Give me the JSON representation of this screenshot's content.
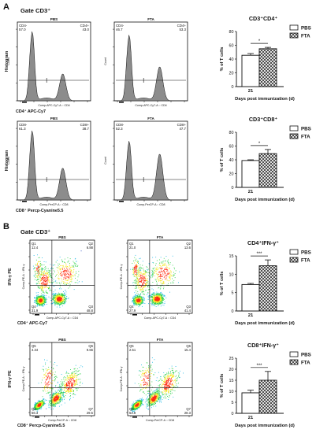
{
  "panels": {
    "A": {
      "letter": "A",
      "gate": "Gate CD3⁺",
      "rows": [
        {
          "kind": "histogram",
          "y_label": "Histogram",
          "x_label": "CD4⁺ APC-Cy7",
          "plots": [
            {
              "group": "PBS",
              "count_label": "Count",
              "axis_label": "Comp-APC-Cy7-A :: CD4",
              "gates": [
                {
                  "name": "CD4-",
                  "value": "57.0"
                },
                {
                  "name": "CD4+",
                  "value": "43.0"
                }
              ],
              "peaks": {
                "neg_height": 1.0,
                "pos_height": 0.38
              }
            },
            {
              "group": "FTA",
              "count_label": "Count",
              "axis_label": "Comp-APC-Cy7-A :: CD4",
              "gates": [
                {
                  "name": "CD4-",
                  "value": "46.7"
                },
                {
                  "name": "CD4+",
                  "value": "53.3"
                }
              ],
              "peaks": {
                "neg_height": 0.95,
                "pos_height": 0.48
              }
            }
          ],
          "chart": {
            "title": "CD3⁺CD4⁺",
            "type": "bar",
            "categories": [
              "21"
            ],
            "series": [
              {
                "name": "PBS",
                "values": [
                  45.5
                ],
                "err": [
                  2.5
                ]
              },
              {
                "name": "FTA",
                "values": [
                  55.0
                ],
                "err": [
                  2.0
                ]
              }
            ],
            "ylim": [
              0,
              80
            ],
            "yticks": [
              "0",
              "20",
              "40",
              "60",
              "80"
            ],
            "ylabel": "% of T cells",
            "xlabel": "Days post immunization (d)",
            "significance": "*",
            "legend": "right"
          }
        },
        {
          "kind": "histogram",
          "y_label": "Histogram",
          "x_label": "CD8⁺ Percp-Cyanine5.5",
          "plots": [
            {
              "group": "PBS",
              "count_label": "Count",
              "axis_label": "Comp-PerCP-A :: CD8",
              "gates": [
                {
                  "name": "CD8-",
                  "value": "61.3"
                },
                {
                  "name": "CD8+",
                  "value": "38.7"
                }
              ],
              "peaks": {
                "neg_height": 1.0,
                "pos_height": 0.45
              }
            },
            {
              "group": "FTA",
              "count_label": "Count",
              "axis_label": "Comp-PerCP-A :: CD8",
              "gates": [
                {
                  "name": "CD8-",
                  "value": "52.3"
                },
                {
                  "name": "CD8+",
                  "value": "47.7"
                }
              ],
              "peaks": {
                "neg_height": 0.85,
                "pos_height": 0.65
              }
            }
          ],
          "chart": {
            "title": "CD3⁺CD8⁺",
            "type": "bar",
            "categories": [
              "21"
            ],
            "series": [
              {
                "name": "PBS",
                "values": [
                  39.0
                ],
                "err": [
                  1.0
                ]
              },
              {
                "name": "FTA",
                "values": [
                  49.0
                ],
                "err": [
                  6.0
                ]
              }
            ],
            "ylim": [
              0,
              80
            ],
            "yticks": [
              "0",
              "20",
              "40",
              "60",
              "80"
            ],
            "ylabel": "% of T cells",
            "xlabel": "Days post immunization (d)",
            "significance": "*",
            "legend": "right"
          }
        }
      ]
    },
    "B": {
      "letter": "B",
      "gate": "Gate CD3⁺",
      "rows": [
        {
          "kind": "dotplot",
          "y_label": "IFN-γ PE",
          "x_label": "CD4⁺ APC-Cy7",
          "plots": [
            {
              "group": "PBS",
              "y_axis_label": "Comp-PE-A :: IFN-γ",
              "x_axis_label": "Comp-APC-Cy7-A :: CD4",
              "quadrants": [
                {
                  "name": "Q1",
                  "value": "12.4"
                },
                {
                  "name": "Q2",
                  "value": "6.88"
                },
                {
                  "name": "Q4",
                  "value": "31.9"
                },
                {
                  "name": "Q3",
                  "value": "48.8"
                }
              ]
            },
            {
              "group": "FTA",
              "y_axis_label": "Comp-PE-A :: IFN-γ",
              "x_axis_label": "Comp-APC-Cy7-A :: CD4",
              "quadrants": [
                {
                  "name": "Q1",
                  "value": "21.0"
                },
                {
                  "name": "Q2",
                  "value": "13.6"
                },
                {
                  "name": "Q4",
                  "value": "27.9"
                },
                {
                  "name": "Q3",
                  "value": "41.4"
                }
              ]
            }
          ],
          "chart": {
            "title": "CD4⁺IFN-γ⁺",
            "type": "bar",
            "categories": [
              "21"
            ],
            "series": [
              {
                "name": "PBS",
                "values": [
                  7.2
                ],
                "err": [
                  0.3
                ]
              },
              {
                "name": "FTA",
                "values": [
                  12.3
                ],
                "err": [
                  1.6
                ]
              }
            ],
            "ylim": [
              0,
              15
            ],
            "yticks": [
              "0",
              "5",
              "10",
              "15"
            ],
            "ylabel": "% of T cells",
            "xlabel": "Days post immunization (d)",
            "significance": "***",
            "legend": "right"
          }
        },
        {
          "kind": "dotplot",
          "y_label": "IFN-γ PE",
          "x_label": "CD8⁺ Percp-Cyanine5.5",
          "plots": [
            {
              "group": "PBS",
              "y_axis_label": "Comp-PE-A :: IFN-γ",
              "x_axis_label": "Comp-PerCP-A :: CD8",
              "quadrants": [
                {
                  "name": "Q5",
                  "value": "4.34"
                },
                {
                  "name": "Q6",
                  "value": "9.66"
                },
                {
                  "name": "Q8",
                  "value": "56.3"
                },
                {
                  "name": "Q7",
                  "value": "29.5"
                }
              ]
            },
            {
              "group": "FTA",
              "y_axis_label": "Comp-PE-A :: IFN-γ",
              "x_axis_label": "Comp-PerCP-A :: CD8",
              "quadrants": [
                {
                  "name": "Q5",
                  "value": "2.51"
                },
                {
                  "name": "Q6",
                  "value": "15.4"
                },
                {
                  "name": "Q8",
                  "value": "53.8"
                },
                {
                  "name": "Q7",
                  "value": "28.3"
                }
              ]
            }
          ],
          "chart": {
            "title": "CD8⁺IFN-γ⁺",
            "type": "bar",
            "categories": [
              "21"
            ],
            "series": [
              {
                "name": "PBS",
                "values": [
                  9.3
                ],
                "err": [
                  1.2
                ]
              },
              {
                "name": "FTA",
                "values": [
                  15.0
                ],
                "err": [
                  4.0
                ]
              }
            ],
            "ylim": [
              0,
              25
            ],
            "yticks": [
              "0",
              "5",
              "10",
              "15",
              "20",
              "25"
            ],
            "ylabel": "% of T cells",
            "xlabel": "Days post immunization (d)",
            "significance": "***",
            "legend": "right"
          }
        }
      ]
    }
  },
  "chart_data": [
    {
      "type": "bar",
      "title": "CD3⁺CD4⁺",
      "categories": [
        "21"
      ],
      "series": [
        {
          "name": "PBS",
          "values": [
            45.5
          ]
        },
        {
          "name": "FTA",
          "values": [
            55.0
          ]
        }
      ],
      "ylabel": "% of T cells",
      "xlabel": "Days post immunization (d)",
      "ylim": [
        0,
        80
      ]
    },
    {
      "type": "bar",
      "title": "CD3⁺CD8⁺",
      "categories": [
        "21"
      ],
      "series": [
        {
          "name": "PBS",
          "values": [
            39.0
          ]
        },
        {
          "name": "FTA",
          "values": [
            49.0
          ]
        }
      ],
      "ylabel": "% of T cells",
      "xlabel": "Days post immunization (d)",
      "ylim": [
        0,
        80
      ]
    },
    {
      "type": "bar",
      "title": "CD4⁺IFN-γ⁺",
      "categories": [
        "21"
      ],
      "series": [
        {
          "name": "PBS",
          "values": [
            7.2
          ]
        },
        {
          "name": "FTA",
          "values": [
            12.3
          ]
        }
      ],
      "ylabel": "% of T cells",
      "xlabel": "Days post immunization (d)",
      "ylim": [
        0,
        15
      ]
    },
    {
      "type": "bar",
      "title": "CD8⁺IFN-γ⁺",
      "categories": [
        "21"
      ],
      "series": [
        {
          "name": "PBS",
          "values": [
            9.3
          ]
        },
        {
          "name": "FTA",
          "values": [
            15.0
          ]
        }
      ],
      "ylabel": "% of T cells",
      "xlabel": "Days post immunization (d)",
      "ylim": [
        0,
        25
      ]
    }
  ],
  "colors": {
    "ink": "#111111",
    "histogram_fill": "#8c8c8c",
    "density_low": "#1f3fbf",
    "density_mid": "#2fd14a",
    "density_high": "#ff2a10",
    "grid_line": "#000000"
  }
}
